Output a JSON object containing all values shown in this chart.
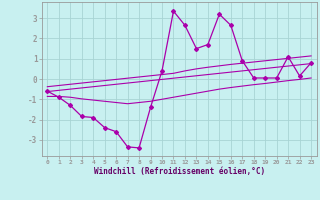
{
  "xlabel": "Windchill (Refroidissement éolien,°C)",
  "bg_color": "#c8f0f0",
  "grid_color": "#a8d4d4",
  "line_color": "#aa00aa",
  "x_data": [
    0,
    1,
    2,
    3,
    4,
    5,
    6,
    7,
    8,
    9,
    10,
    11,
    12,
    13,
    14,
    15,
    16,
    17,
    18,
    19,
    20,
    21,
    22,
    23
  ],
  "y_main": [
    -0.6,
    -0.9,
    -1.3,
    -1.85,
    -1.9,
    -2.4,
    -2.6,
    -3.35,
    -3.4,
    -1.4,
    0.4,
    3.35,
    2.65,
    1.5,
    1.7,
    3.2,
    2.65,
    0.9,
    0.05,
    0.05,
    0.05,
    1.1,
    0.15,
    0.8
  ],
  "y_reg": [
    -0.62,
    -0.56,
    -0.5,
    -0.44,
    -0.38,
    -0.32,
    -0.26,
    -0.2,
    -0.14,
    -0.08,
    -0.02,
    0.04,
    0.1,
    0.16,
    0.22,
    0.28,
    0.34,
    0.4,
    0.46,
    0.52,
    0.58,
    0.64,
    0.7,
    0.76
  ],
  "y_upper": [
    -0.38,
    -0.32,
    -0.26,
    -0.2,
    -0.14,
    -0.08,
    -0.02,
    0.04,
    0.1,
    0.16,
    0.22,
    0.28,
    0.4,
    0.5,
    0.58,
    0.65,
    0.72,
    0.78,
    0.84,
    0.9,
    0.96,
    1.02,
    1.08,
    1.14
  ],
  "y_lower": [
    -0.86,
    -0.86,
    -0.9,
    -0.98,
    -1.04,
    -1.1,
    -1.16,
    -1.22,
    -1.16,
    -1.1,
    -1.0,
    -0.9,
    -0.8,
    -0.7,
    -0.6,
    -0.5,
    -0.42,
    -0.35,
    -0.28,
    -0.22,
    -0.15,
    -0.08,
    -0.02,
    0.05
  ],
  "xlim": [
    -0.5,
    23.5
  ],
  "ylim": [
    -3.8,
    3.8
  ],
  "yticks": [
    -3,
    -2,
    -1,
    0,
    1,
    2,
    3
  ],
  "xticks": [
    0,
    1,
    2,
    3,
    4,
    5,
    6,
    7,
    8,
    9,
    10,
    11,
    12,
    13,
    14,
    15,
    16,
    17,
    18,
    19,
    20,
    21,
    22,
    23
  ]
}
